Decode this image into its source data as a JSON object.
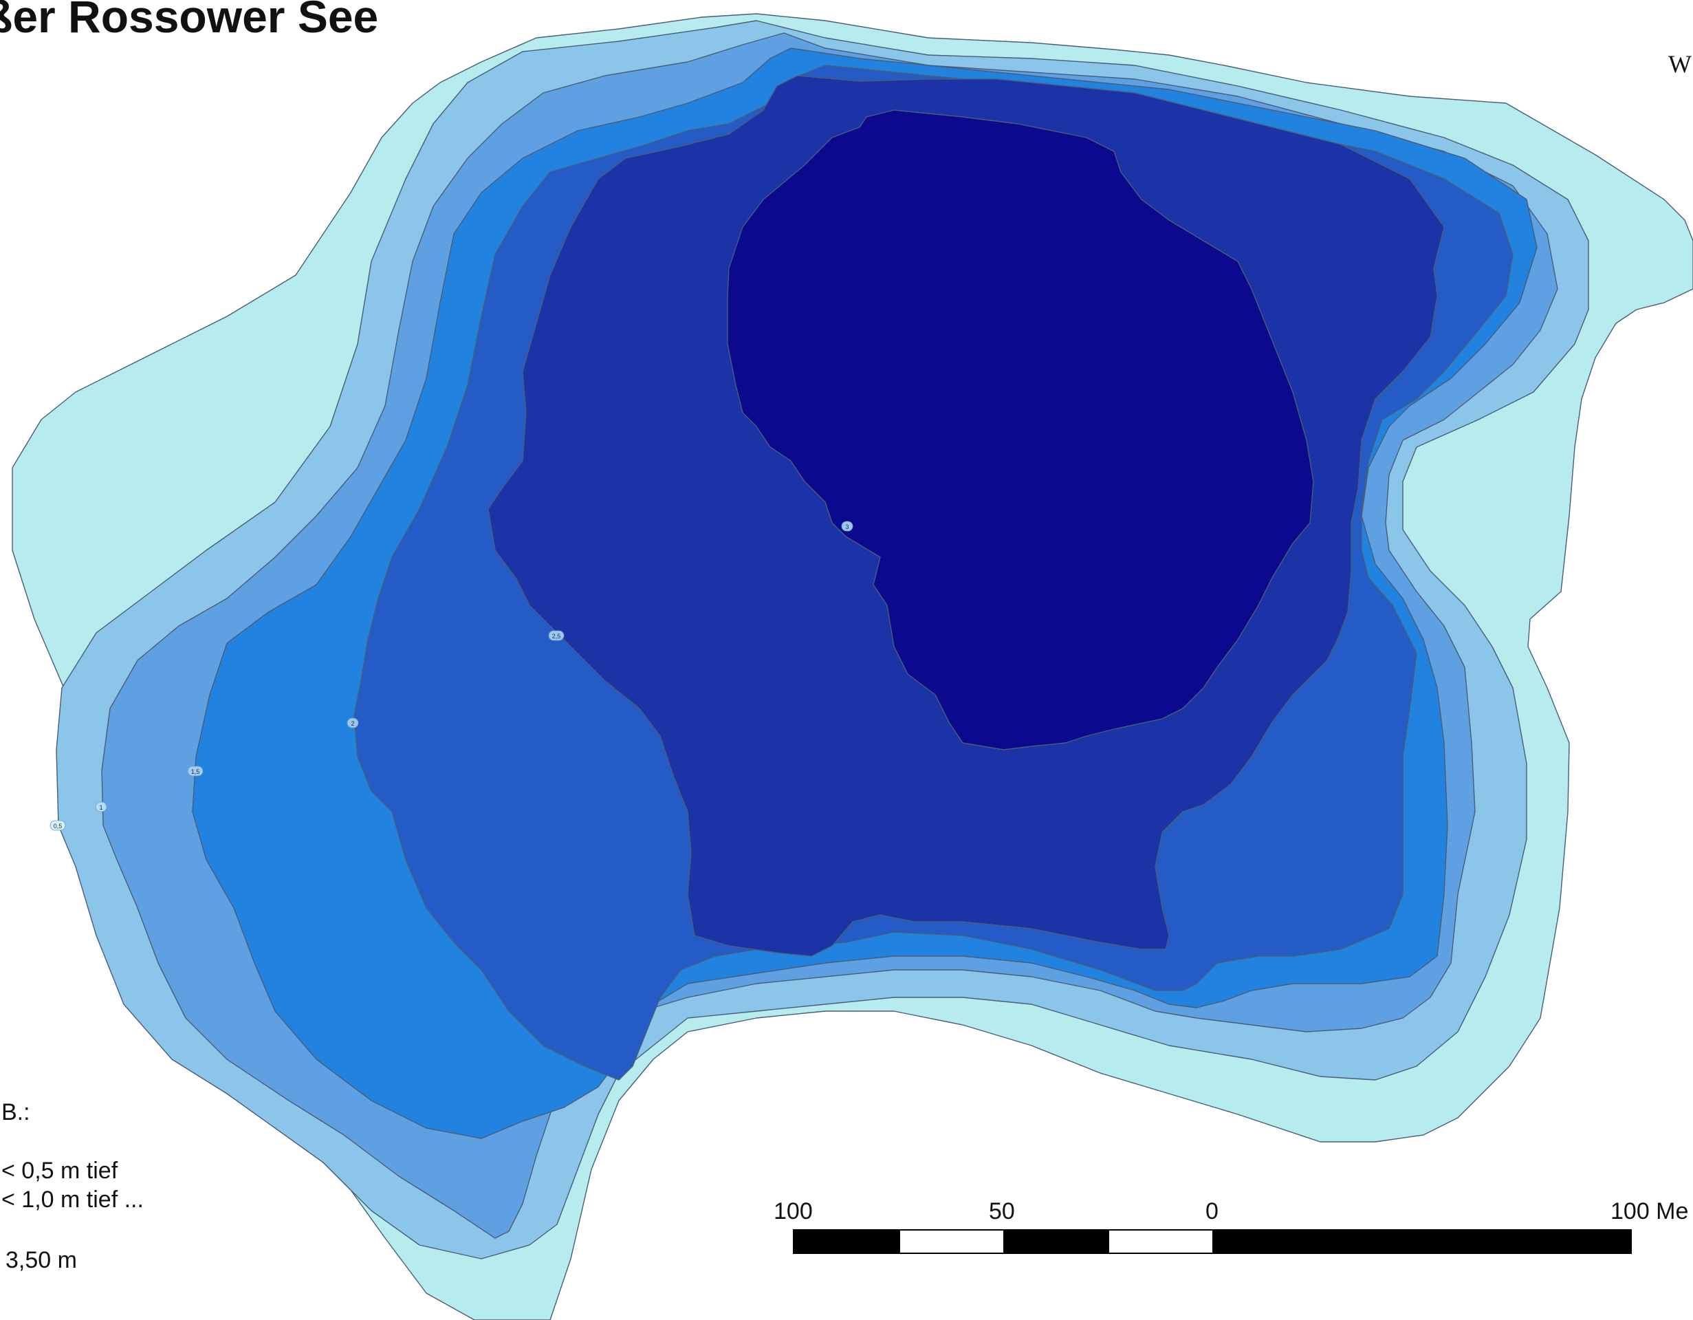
{
  "map": {
    "title": "ßer Rossower See",
    "corner_text": "W",
    "colors": {
      "depth_0_5": "#b6ecee",
      "depth_1_0": "#8cc5ea",
      "depth_1_5": "#5fa0e3",
      "depth_2_0": "#2183df",
      "depth_2_5": "#245bc7",
      "depth_3_0": "#1c33a8",
      "depth_3_5": "#0b0a8e",
      "contour_line": "#4a5c78"
    },
    "depth_labels": [
      "0,5",
      "1",
      "1,5",
      "2",
      "2,5",
      "3"
    ]
  },
  "legend": {
    "header": "B.:",
    "items": [
      "< 0,5 m tief",
      "< 1,0 m tief ..."
    ],
    "max_depth": "3,50 m"
  },
  "scale_bar": {
    "labels": [
      "100",
      "50",
      "0",
      "100 Me"
    ]
  }
}
